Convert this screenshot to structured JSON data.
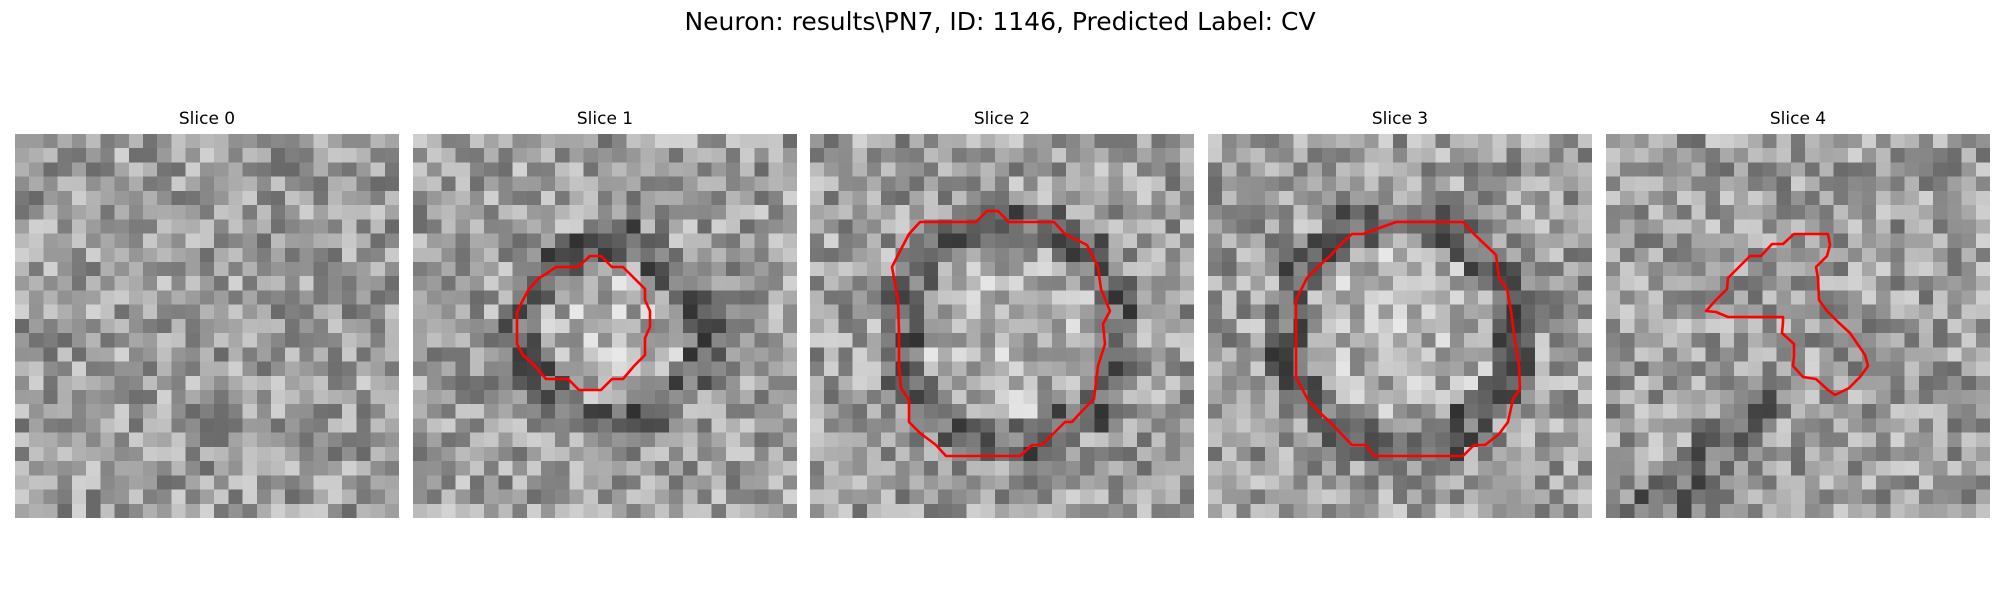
{
  "figure": {
    "title": "Neuron: results\\PN7, ID: 1146, Predicted Label: CV"
  },
  "slices": [
    {
      "title": "Slice 0",
      "mask_color": "#ff0000",
      "has_mask": false
    },
    {
      "title": "Slice 1",
      "mask_color": "#ff0000",
      "has_mask": true
    },
    {
      "title": "Slice 2",
      "mask_color": "#ff0000",
      "has_mask": true
    },
    {
      "title": "Slice 3",
      "mask_color": "#ff0000",
      "has_mask": true
    },
    {
      "title": "Slice 4",
      "mask_color": "#ff0000",
      "has_mask": true
    }
  ],
  "colors": {
    "background": "#ffffff",
    "colormap": "gray",
    "contour": "#ff0000"
  }
}
